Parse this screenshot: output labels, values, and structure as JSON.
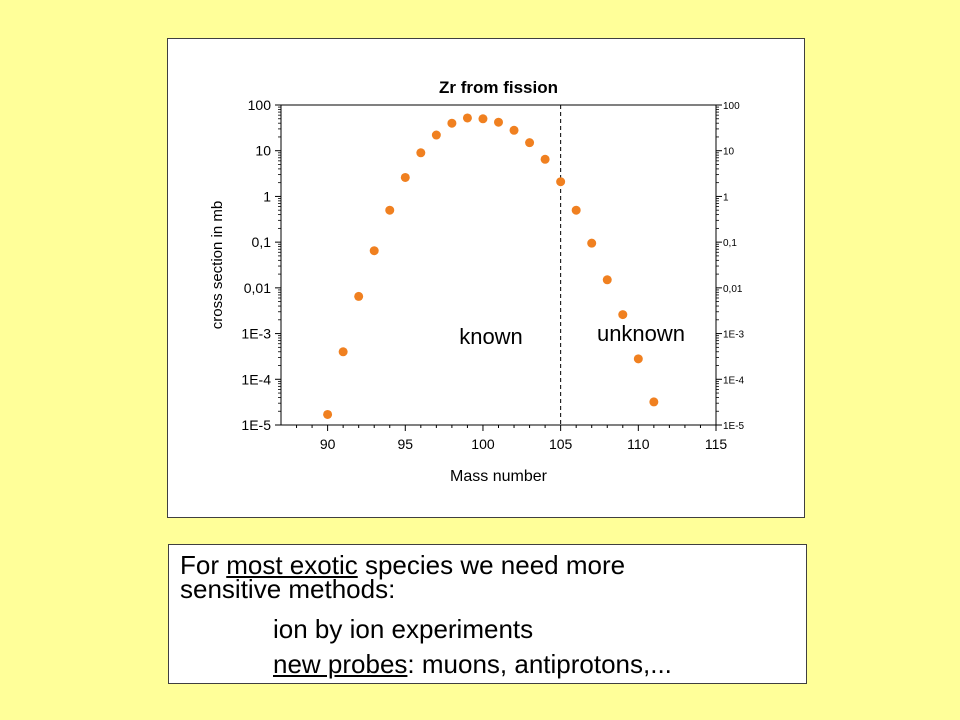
{
  "chart_data": {
    "type": "scatter",
    "title": "Zr from fission",
    "xlabel": "Mass number",
    "ylabel": "cross section  in mb",
    "xlim": [
      87,
      115
    ],
    "ylim": [
      1e-05,
      100
    ],
    "yscale": "log",
    "x_ticks": [
      "90",
      "95",
      "100",
      "105",
      "110",
      "115"
    ],
    "y_ticks_left": [
      "100",
      "10",
      "1",
      "0,1",
      "0,01",
      "1E-3",
      "1E-4",
      "1E-5"
    ],
    "y_ticks_right": [
      "100",
      "10",
      "1",
      "0,1",
      "0,01",
      "1E-3",
      "1E-4",
      "1E-5"
    ],
    "grid": false,
    "marker_color": "#f08020",
    "series": [
      {
        "x": [
          90,
          91,
          92,
          93,
          94,
          95,
          96,
          97,
          98,
          99,
          100,
          101,
          102,
          103,
          104,
          105,
          106,
          107,
          108,
          109,
          110,
          111
        ],
        "y": [
          1.7e-05,
          0.0004,
          0.0065,
          0.065,
          0.5,
          2.6,
          9,
          22,
          40,
          52,
          50,
          42,
          28,
          15,
          6.5,
          2.1,
          0.5,
          0.095,
          0.015,
          0.0026,
          0.00028,
          3.2e-05
        ]
      }
    ],
    "vline": {
      "x": 105,
      "style": "dashed"
    },
    "annotations": [
      "known",
      "unknown"
    ]
  },
  "text_box": {
    "line1_underlined": "most exotic",
    "line1_prefix": "For ",
    "line1_suffix": " species we need more",
    "line2": "sensitive methods:",
    "line3": "ion by ion experiments",
    "line4_underlined": "new probes",
    "line4_suffix": ":  muons, antiprotons,..."
  }
}
